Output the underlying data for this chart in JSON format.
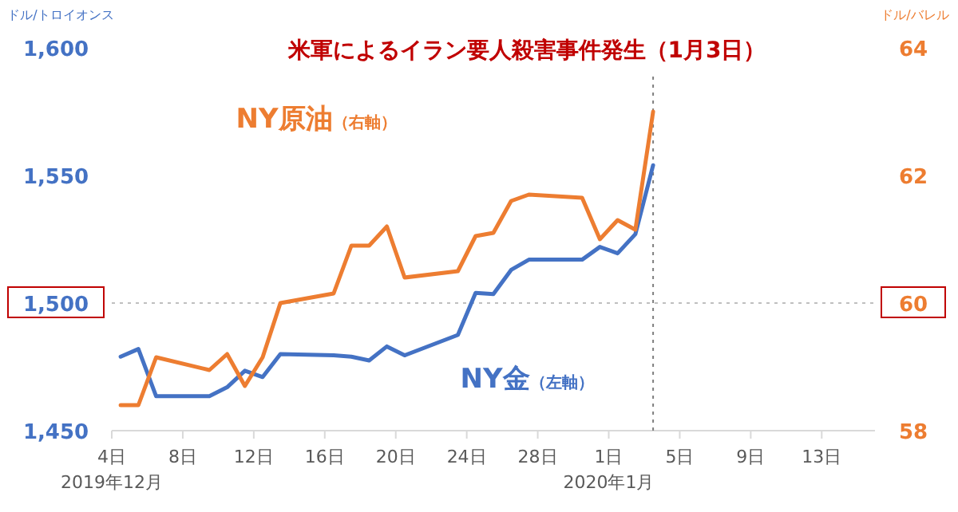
{
  "chart_data": {
    "type": "line",
    "ylabel": "ドル/トロイオンス",
    "y2label": "ドル/バレル",
    "x": [
      "2019-12-04T12:00",
      "2019-12-05T12:00",
      "2019-12-06T12:00",
      "2019-12-09T12:00",
      "2019-12-10T12:00",
      "2019-12-11T12:00",
      "2019-12-12T12:00",
      "2019-12-13T12:00",
      "2019-12-16T12:00",
      "2019-12-17T12:00",
      "2019-12-18T12:00",
      "2019-12-19T12:00",
      "2019-12-20T12:00",
      "2019-12-23T12:00",
      "2019-12-24T12:00",
      "2019-12-25T12:00",
      "2019-12-26T12:00",
      "2019-12-27T12:00",
      "2019-12-30T12:00",
      "2019-12-31T12:00",
      "2020-01-01T12:00",
      "2020-01-02T12:00",
      "2020-01-03T12:00"
    ],
    "series": [
      {
        "name": "NY金（左軸）",
        "color": "#4472c4",
        "values": [
          1479,
          1482,
          1463.5,
          1463.5,
          1467,
          1473.5,
          1471,
          1480,
          1479.5,
          1479,
          1477.5,
          1483,
          1479.5,
          1487.5,
          1504,
          1503.5,
          1513,
          1517,
          1517,
          1522,
          1519.5,
          1527,
          1554
        ]
      },
      {
        "name": "NY原油（右軸）",
        "color": "#ed7d31",
        "axis": "y2",
        "values": [
          58.4,
          58.4,
          59.15,
          58.95,
          59.2,
          58.7,
          59.15,
          60.0,
          60.15,
          60.9,
          60.9,
          61.2,
          60.4,
          60.5,
          61.05,
          61.1,
          61.6,
          61.7,
          61.65,
          61.0,
          61.3,
          61.15,
          63.0
        ]
      }
    ],
    "xlim": [
      "2019-12-04",
      "2020-01-16"
    ],
    "xticks": [
      {
        "value": "2019-12-04",
        "label": "4日\n2019年12月"
      },
      {
        "value": "2019-12-08",
        "label": "8日"
      },
      {
        "value": "2019-12-12",
        "label": "12日"
      },
      {
        "value": "2019-12-16",
        "label": "16日"
      },
      {
        "value": "2019-12-20",
        "label": "20日"
      },
      {
        "value": "2019-12-24",
        "label": "24日"
      },
      {
        "value": "2019-12-28",
        "label": "28日"
      },
      {
        "value": "2020-01-01",
        "label": "1日\n2020年1月"
      },
      {
        "value": "2020-01-05",
        "label": "5日"
      },
      {
        "value": "2020-01-09",
        "label": "9日"
      },
      {
        "value": "2020-01-13",
        "label": "13日"
      }
    ],
    "ylim": [
      1450,
      1600
    ],
    "yticks": [
      {
        "value": 1450,
        "label": "1,450"
      },
      {
        "value": 1500,
        "label": "1,500"
      },
      {
        "value": 1550,
        "label": "1,550"
      },
      {
        "value": 1600,
        "label": "1,600"
      }
    ],
    "y2lim": [
      58,
      64
    ],
    "y2ticks": [
      58,
      60,
      62,
      64
    ],
    "ref_lines": [
      {
        "axis": "x",
        "value": "2020-01-03T12:00",
        "color": "#7f7f7f",
        "line_style": "dotted"
      },
      {
        "axis": "y",
        "value": 1500,
        "color": "#bfbfbf",
        "line_style": "dotted"
      }
    ],
    "title": "米軍によるイラン要人殺害事件発生（1月3日）",
    "grid": false,
    "marker": "none",
    "line_style": "solid"
  }
}
